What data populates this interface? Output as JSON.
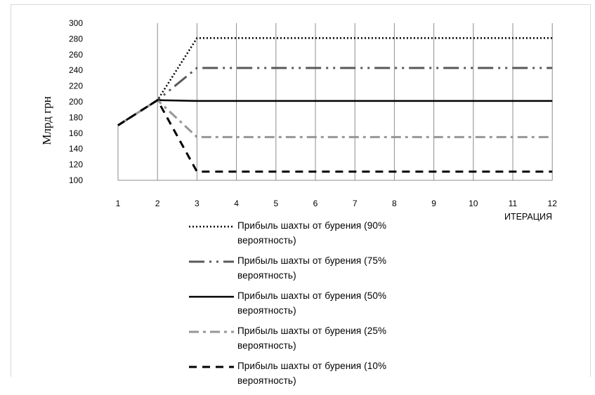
{
  "chart_data": {
    "type": "line",
    "ylabel": "Млрд грн",
    "xlabel": "ИТЕРАЦИЯ",
    "categories": [
      "1",
      "2",
      "3",
      "4",
      "5",
      "6",
      "7",
      "8",
      "9",
      "10",
      "11",
      "12"
    ],
    "ylim": [
      100,
      300
    ],
    "yticks": [
      "100",
      "120",
      "140",
      "160",
      "180",
      "200",
      "220",
      "240",
      "260",
      "280",
      "300"
    ],
    "grid": "vertical",
    "legend_position": "bottom",
    "series": [
      {
        "name": "Прибыль шахты от бурения (90% вероятность)",
        "color": "#000000",
        "style": "dotted",
        "values": [
          170,
          202,
          281,
          281,
          281,
          281,
          281,
          281,
          281,
          281,
          281,
          281
        ]
      },
      {
        "name": "Прибыль шахты от бурения (75% вероятность)",
        "color": "#595959",
        "style": "long-dash-dot-dot",
        "values": [
          170,
          202,
          243,
          243,
          243,
          243,
          243,
          243,
          243,
          243,
          243,
          243
        ]
      },
      {
        "name": "Прибыль шахты от бурения (50% вероятность)",
        "color": "#000000",
        "style": "solid",
        "values": [
          170,
          202,
          201,
          201,
          201,
          201,
          201,
          201,
          201,
          201,
          201,
          201
        ]
      },
      {
        "name": "Прибыль шахты от бурения (25% вероятность)",
        "color": "#969696",
        "style": "dash-dot",
        "values": [
          170,
          202,
          155,
          155,
          155,
          155,
          155,
          155,
          155,
          155,
          155,
          155
        ]
      },
      {
        "name": "Прибыль шахты от бурения (10% вероятность)",
        "color": "#000000",
        "style": "dashed",
        "values": [
          170,
          202,
          111,
          111,
          111,
          111,
          111,
          111,
          111,
          111,
          111,
          111
        ]
      }
    ]
  }
}
